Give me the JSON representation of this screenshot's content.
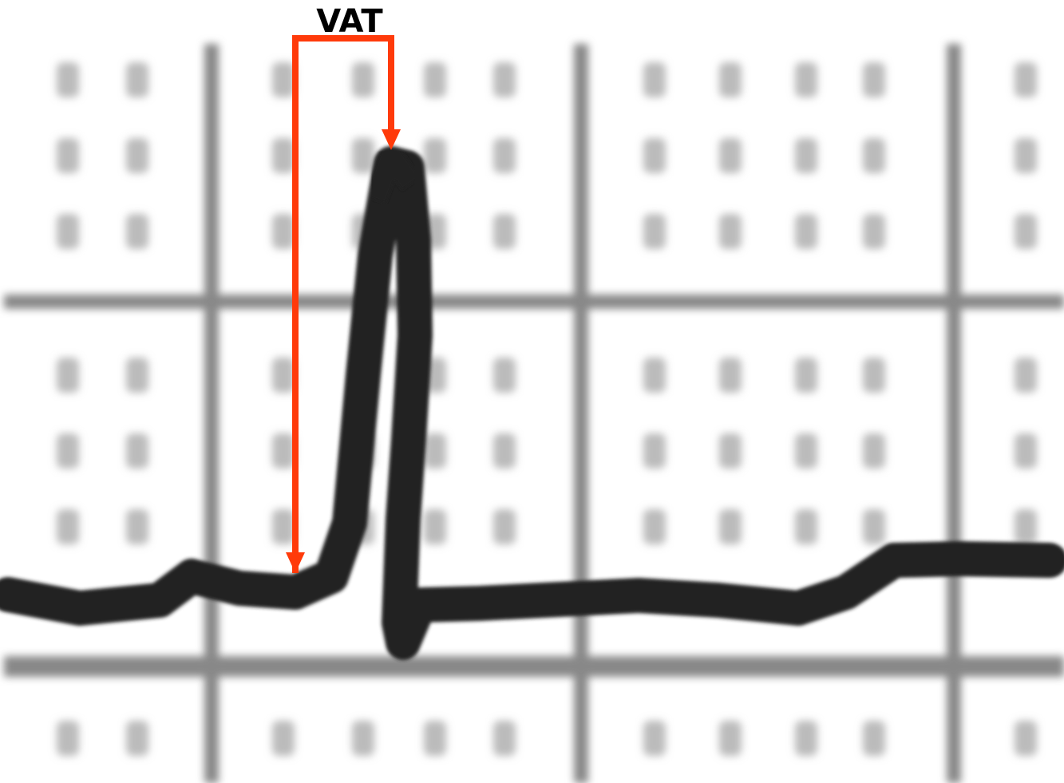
{
  "label": "VAT"
}
